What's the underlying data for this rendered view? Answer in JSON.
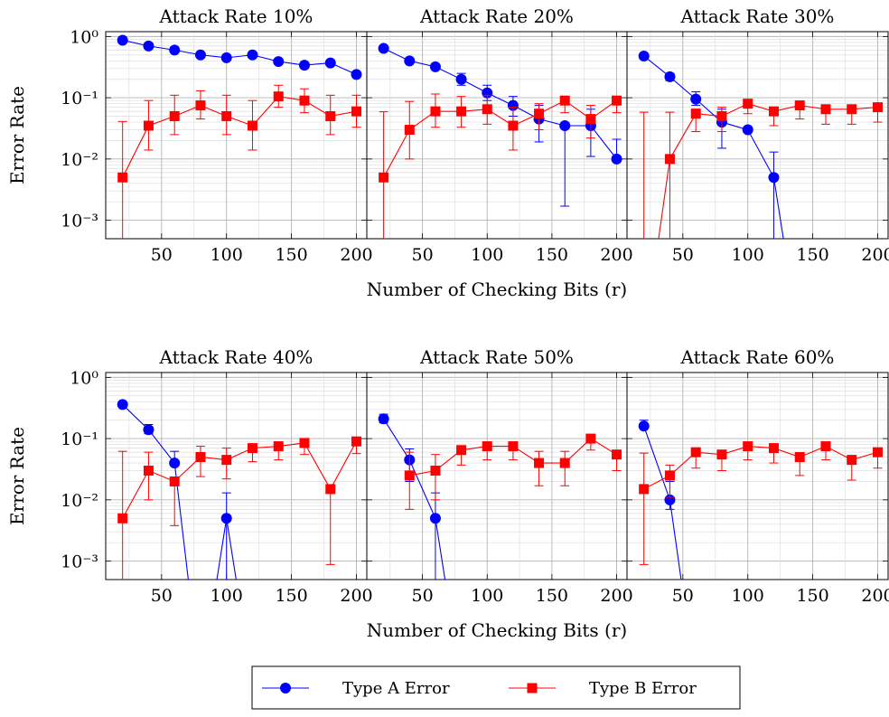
{
  "chart_data": [
    {
      "type": "line",
      "title": "Attack Rate 10%",
      "xlabel": "",
      "ylabel": "Error Rate",
      "xlim": [
        7,
        208
      ],
      "ylim": [
        0.0005,
        1.2
      ],
      "yscale": "log",
      "grid": true,
      "series": [
        {
          "name": "Type A Error",
          "x": [
            20,
            40,
            60,
            80,
            100,
            120,
            140,
            160,
            180,
            200
          ],
          "y": [
            0.87,
            0.7,
            0.6,
            0.5,
            0.45,
            0.5,
            0.39,
            0.34,
            0.37,
            0.24
          ],
          "err_low": [],
          "err_high": []
        },
        {
          "name": "Type B Error",
          "x": [
            20,
            40,
            60,
            80,
            100,
            120,
            140,
            160,
            180,
            200
          ],
          "y": [
            0.005,
            0.035,
            0.05,
            0.075,
            0.05,
            0.035,
            0.105,
            0.09,
            0.05,
            0.06
          ],
          "err_low": [
            0.0005,
            0.014,
            0.025,
            0.045,
            0.025,
            0.014,
            0.07,
            0.057,
            0.025,
            0.033
          ],
          "err_high": [
            0.041,
            0.09,
            0.11,
            0.13,
            0.11,
            0.09,
            0.16,
            0.14,
            0.11,
            0.11
          ]
        }
      ]
    },
    {
      "type": "line",
      "title": "Attack Rate 20%",
      "xlabel": "Number of Checking Bits (r)",
      "ylabel": "",
      "xlim": [
        7,
        208
      ],
      "ylim": [
        0.0005,
        1.2
      ],
      "yscale": "log",
      "grid": true,
      "series": [
        {
          "name": "Type A Error",
          "x": [
            20,
            40,
            60,
            80,
            100,
            120,
            140,
            160,
            180,
            200
          ],
          "y": [
            0.64,
            0.4,
            0.32,
            0.2,
            0.12,
            0.075,
            0.045,
            0.035,
            0.035,
            0.01
          ],
          "err_low": [
            0.64,
            0.4,
            0.32,
            0.16,
            0.09,
            0.05,
            0.019,
            0.0017,
            0.011,
            0.01
          ],
          "err_high": [
            0.64,
            0.4,
            0.32,
            0.25,
            0.16,
            0.105,
            0.075,
            0.035,
            0.065,
            0.021
          ]
        },
        {
          "name": "Type B Error",
          "x": [
            20,
            40,
            60,
            80,
            100,
            120,
            140,
            160,
            180,
            200
          ],
          "y": [
            0.005,
            0.03,
            0.06,
            0.06,
            0.065,
            0.035,
            0.055,
            0.09,
            0.045,
            0.09
          ],
          "err_low": [
            0.0005,
            0.01,
            0.033,
            0.033,
            0.037,
            0.014,
            0.03,
            0.057,
            0.022,
            0.057
          ],
          "err_high": [
            0.059,
            0.087,
            0.115,
            0.105,
            0.11,
            0.07,
            0.08,
            0.09,
            0.075,
            0.09
          ]
        }
      ]
    },
    {
      "type": "line",
      "title": "Attack Rate 30%",
      "xlabel": "",
      "ylabel": "",
      "xlim": [
        7,
        208
      ],
      "ylim": [
        0.0005,
        1.2
      ],
      "yscale": "log",
      "grid": true,
      "series": [
        {
          "name": "Type A Error",
          "x": [
            20,
            40,
            60,
            80,
            100,
            120,
            140
          ],
          "y": [
            0.48,
            0.22,
            0.095,
            0.04,
            0.03,
            0.005,
            1e-05
          ],
          "err_low": [
            0.48,
            0.19,
            0.075,
            0.015,
            0.03,
            0.0005,
            1e-05
          ],
          "err_high": [
            0.48,
            0.25,
            0.125,
            0.065,
            0.03,
            0.013,
            1e-05
          ]
        },
        {
          "name": "Type B Error",
          "x": [
            20,
            40,
            60,
            80,
            100,
            120,
            140,
            160,
            180,
            200
          ],
          "y": [
            1e-05,
            0.01,
            0.055,
            0.05,
            0.08,
            0.06,
            0.075,
            0.065,
            0.065,
            0.07
          ],
          "err_low": [
            0.0005,
            0.0005,
            0.028,
            0.028,
            0.055,
            0.035,
            0.045,
            0.037,
            0.037,
            0.04
          ],
          "err_high": [
            0.058,
            0.058,
            0.065,
            0.07,
            0.08,
            0.06,
            0.075,
            0.065,
            0.065,
            0.07
          ]
        }
      ]
    },
    {
      "type": "line",
      "title": "Attack Rate 40%",
      "xlabel": "",
      "ylabel": "Error Rate",
      "xlim": [
        7,
        208
      ],
      "ylim": [
        0.0005,
        1.2
      ],
      "yscale": "log",
      "grid": true,
      "series": [
        {
          "name": "Type A Error",
          "x": [
            20,
            40,
            60,
            80,
            100,
            120
          ],
          "y": [
            0.36,
            0.14,
            0.04,
            1e-05,
            0.005,
            1e-05
          ],
          "err_low": [
            0.36,
            0.12,
            0.04,
            1e-05,
            0.0005,
            1e-05
          ],
          "err_high": [
            0.36,
            0.17,
            0.062,
            1e-05,
            0.013,
            1e-05
          ]
        },
        {
          "name": "Type B Error",
          "x": [
            20,
            40,
            60,
            80,
            100,
            120,
            140,
            160,
            180,
            200
          ],
          "y": [
            0.005,
            0.03,
            0.02,
            0.05,
            0.045,
            0.07,
            0.075,
            0.085,
            0.015,
            0.09
          ],
          "err_low": [
            0.0005,
            0.01,
            0.0038,
            0.024,
            0.022,
            0.042,
            0.045,
            0.055,
            0.00088,
            0.057
          ],
          "err_high": [
            0.062,
            0.06,
            0.02,
            0.075,
            0.07,
            0.07,
            0.075,
            0.085,
            0.015,
            0.09
          ]
        }
      ]
    },
    {
      "type": "line",
      "title": "Attack Rate 50%",
      "xlabel": "Number of Checking Bits (r)",
      "ylabel": "",
      "xlim": [
        7,
        208
      ],
      "ylim": [
        0.0005,
        1.2
      ],
      "yscale": "log",
      "grid": true,
      "series": [
        {
          "name": "Type A Error",
          "x": [
            20,
            40,
            60,
            80
          ],
          "y": [
            0.21,
            0.045,
            0.005,
            1e-05
          ],
          "err_low": [
            0.18,
            0.02,
            0.0005,
            1e-05
          ],
          "err_high": [
            0.25,
            0.068,
            0.013,
            1e-05
          ]
        },
        {
          "name": "Type B Error",
          "x": [
            40,
            60,
            80,
            100,
            120,
            140,
            160,
            180,
            200
          ],
          "y": [
            0.025,
            0.03,
            0.065,
            0.075,
            0.075,
            0.04,
            0.04,
            0.1,
            0.055
          ],
          "err_low": [
            0.007,
            0.01,
            0.037,
            0.045,
            0.045,
            0.017,
            0.017,
            0.065,
            0.03
          ],
          "err_high": [
            0.06,
            0.055,
            0.065,
            0.075,
            0.075,
            0.062,
            0.062,
            0.1,
            0.055
          ]
        }
      ]
    },
    {
      "type": "line",
      "title": "Attack Rate 60%",
      "xlabel": "",
      "ylabel": "",
      "xlim": [
        7,
        208
      ],
      "ylim": [
        0.0005,
        1.2
      ],
      "yscale": "log",
      "grid": true,
      "series": [
        {
          "name": "Type A Error",
          "x": [
            20,
            40,
            60
          ],
          "y": [
            0.16,
            0.01,
            1e-05
          ],
          "err_low": [
            0.16,
            0.007,
            1e-05
          ],
          "err_high": [
            0.2,
            0.02,
            1e-05
          ]
        },
        {
          "name": "Type B Error",
          "x": [
            20,
            40,
            60,
            80,
            100,
            120,
            140,
            160,
            180,
            200
          ],
          "y": [
            0.015,
            0.025,
            0.06,
            0.055,
            0.075,
            0.07,
            0.05,
            0.075,
            0.045,
            0.06
          ],
          "err_low": [
            0.00088,
            0.011,
            0.033,
            0.03,
            0.045,
            0.04,
            0.025,
            0.045,
            0.021,
            0.033
          ],
          "err_high": [
            0.058,
            0.037,
            0.06,
            0.055,
            0.075,
            0.07,
            0.05,
            0.075,
            0.045,
            0.06
          ]
        }
      ]
    }
  ],
  "ticks": {
    "x": [
      "50",
      "100",
      "150",
      "200"
    ],
    "y": [
      "10⁰",
      "10⁻¹",
      "10⁻²",
      "10⁻³"
    ]
  },
  "legend": {
    "items": [
      {
        "label": "Type A Error",
        "color": "#0000ff",
        "marker": "circle"
      },
      {
        "label": "Type B Error",
        "color": "#ff0000",
        "marker": "square"
      }
    ]
  },
  "colors": {
    "type_a": "#0000ff",
    "type_b": "#ff0000"
  }
}
